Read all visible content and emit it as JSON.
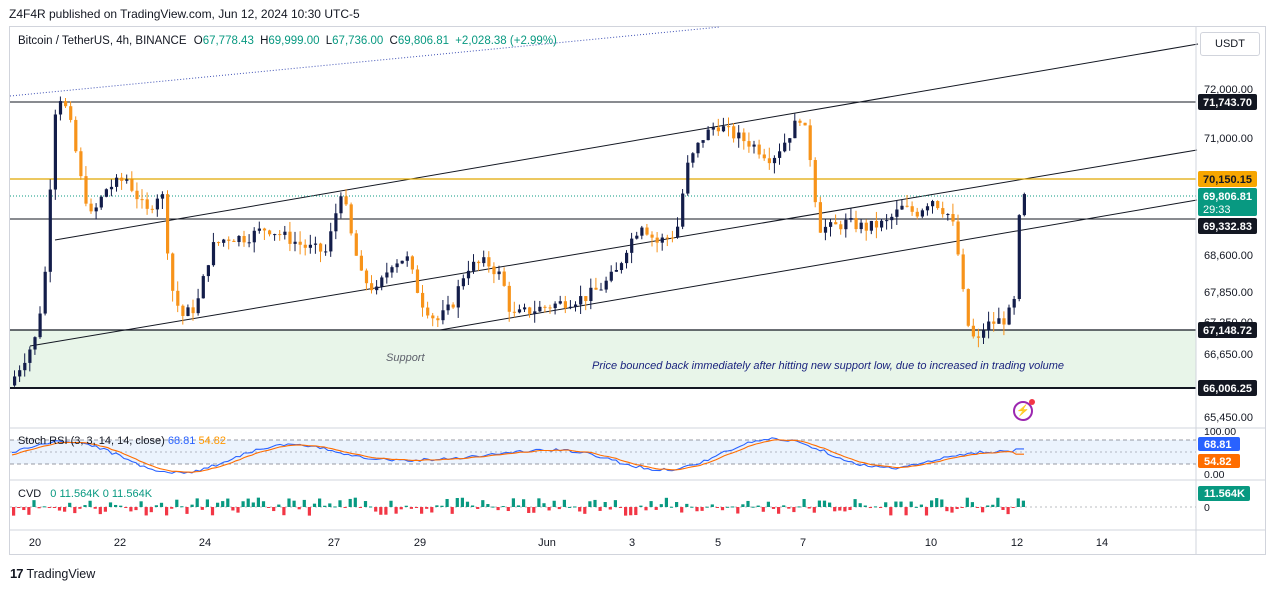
{
  "publisher": "Z4F4R published on TradingView.com, Jun 12, 2024 10:30 UTC-5",
  "symbol": "Bitcoin / TetherUS, 4h, BINANCE",
  "ohlc": {
    "open_label": "O",
    "open": "67,778.43",
    "high_label": "H",
    "high": "69,999.00",
    "low_label": "L",
    "low": "67,736.00",
    "close_label": "C",
    "close": "69,806.81",
    "change": "+2,028.38 (+2.99%)"
  },
  "currency_button": "USDT",
  "branding": "TradingView",
  "alert_icon": "lightning-alert-icon",
  "colors": {
    "up": "#089981",
    "candle_up_body": "#131d4a",
    "candle_down": "#f7931a",
    "rsi_k": "#2962ff",
    "rsi_d": "#ff6d00",
    "support_zone": "#e8f5e9",
    "level_line": "#e0a800"
  },
  "annotations": {
    "support": "Support",
    "bounce": "Price bounced back immediately after hitting new support low, due to increased in trading volume"
  },
  "price_badges": {
    "level_high": "71,743.70",
    "level_orange": "70,150.15",
    "last_price": "69,806.81",
    "countdown": "29:33",
    "level_mid": "69,332.83",
    "level_support_top": "67,148.72",
    "level_support_bottom": "66,006.25"
  },
  "stoch_rsi": {
    "label": "Stoch RSI",
    "params": "3, 3, 14, 14, close",
    "k": "68.81",
    "d": "54.82",
    "axis": [
      "100.00",
      "0.00"
    ]
  },
  "cvd": {
    "label": "CVD",
    "values": "0  11.564K  0  11.564K",
    "badge": "11.564K",
    "axis": [
      "0"
    ]
  },
  "chart_data": {
    "type": "candlestick",
    "title": "Bitcoin / TetherUS, 4h, BINANCE",
    "ylim": [
      65300,
      72600
    ],
    "y_ticks": [
      "72,000.00",
      "71,000.00",
      "68,600.00",
      "67,850.00",
      "67,250.00",
      "66,650.00",
      "65,450.00"
    ],
    "x_ticks": [
      "20",
      "22",
      "24",
      "27",
      "29",
      "Jun",
      "3",
      "5",
      "7",
      "10",
      "12",
      "14"
    ],
    "grid": false,
    "last_close": 69806.81,
    "support_zone": [
      66006.25,
      67148.72
    ],
    "levels": [
      71743.7,
      70150.15,
      69332.83,
      67148.72,
      66006.25
    ],
    "rsi_k_last": 68.81,
    "rsi_d_last": 54.82,
    "cvd_last": 11564
  }
}
